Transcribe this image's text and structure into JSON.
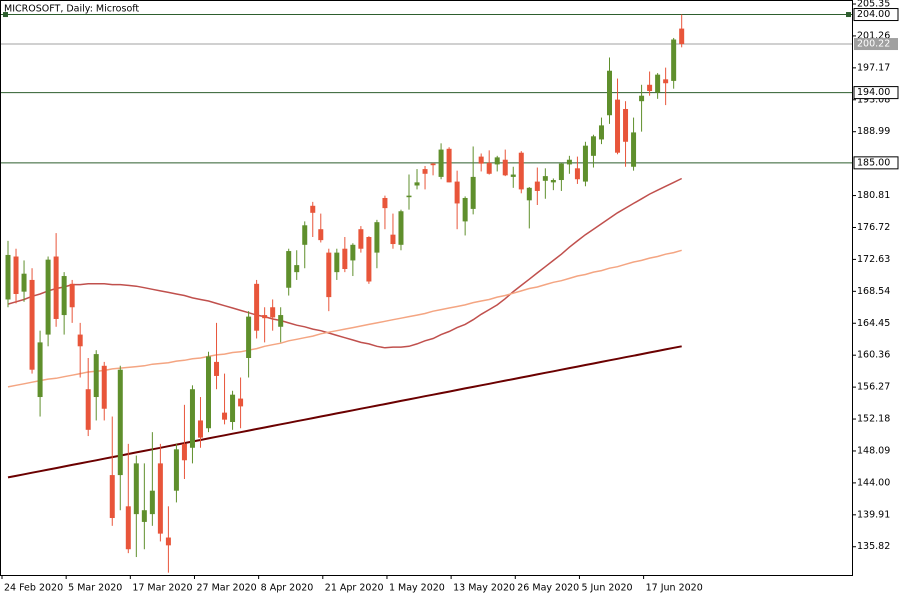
{
  "chart_data": {
    "type": "candlestick",
    "title": "MICROSOFT, Daily:  Microsoft",
    "categories": [
      "24 Feb 2020",
      null,
      null,
      null,
      null,
      null,
      null,
      null,
      "5 Mar 2020",
      null,
      null,
      null,
      null,
      null,
      null,
      null,
      "17 Mar 2020",
      null,
      null,
      null,
      null,
      null,
      null,
      null,
      "27 Mar 2020",
      null,
      null,
      null,
      null,
      null,
      null,
      null,
      "8 Apr 2020",
      null,
      null,
      null,
      null,
      null,
      null,
      null,
      "21 Apr 2020",
      null,
      null,
      null,
      null,
      null,
      null,
      null,
      "1 May 2020",
      null,
      null,
      null,
      null,
      null,
      null,
      null,
      "13 May 2020",
      null,
      null,
      null,
      null,
      null,
      null,
      null,
      "26 May 2020",
      null,
      null,
      null,
      null,
      null,
      null,
      null,
      "5 Jun 2020",
      null,
      null,
      null,
      null,
      null,
      null,
      null,
      "17 Jun 2020",
      null,
      null,
      null,
      null
    ],
    "ohlc": [
      [
        167.5,
        175.0,
        166.5,
        173.2
      ],
      [
        173.0,
        174.0,
        167.0,
        168.2
      ],
      [
        168.5,
        172.5,
        167.2,
        170.8
      ],
      [
        170.0,
        171.5,
        158.0,
        158.5
      ],
      [
        155.0,
        163.5,
        152.5,
        162.0
      ],
      [
        163.0,
        173.0,
        161.5,
        172.6
      ],
      [
        173.0,
        176.0,
        164.0,
        165.0
      ],
      [
        165.5,
        171.0,
        163.0,
        170.5
      ],
      [
        169.5,
        170.0,
        164.5,
        166.5
      ],
      [
        163.0,
        164.5,
        157.5,
        161.5
      ],
      [
        156.0,
        160.0,
        150.0,
        150.8
      ],
      [
        155.0,
        161.0,
        152.0,
        160.5
      ],
      [
        159.0,
        159.5,
        152.0,
        153.5
      ],
      [
        145.0,
        152.5,
        138.5,
        139.5
      ],
      [
        145.0,
        159.0,
        140.5,
        158.5
      ],
      [
        141.0,
        149.0,
        135.0,
        135.5
      ],
      [
        140.0,
        147.5,
        134.5,
        146.5
      ],
      [
        139.0,
        146.5,
        135.5,
        140.5
      ],
      [
        140.0,
        150.5,
        138.5,
        143.0
      ],
      [
        146.5,
        149.0,
        136.5,
        137.5
      ],
      [
        137.0,
        141.0,
        132.5,
        136.0
      ],
      [
        143.0,
        149.0,
        141.5,
        148.3
      ],
      [
        149.0,
        154.0,
        144.5,
        146.9
      ],
      [
        148.5,
        156.5,
        146.5,
        156.0
      ],
      [
        152.0,
        155.0,
        148.5,
        149.8
      ],
      [
        151.0,
        160.8,
        150.5,
        160.2
      ],
      [
        159.5,
        164.5,
        156.0,
        157.7
      ],
      [
        153.0,
        158.0,
        151.5,
        152.1
      ],
      [
        151.8,
        155.8,
        150.8,
        155.3
      ],
      [
        154.8,
        157.5,
        151.0,
        153.8
      ],
      [
        160.0,
        166.0,
        157.5,
        165.3
      ],
      [
        169.5,
        170.0,
        162.5,
        163.5
      ],
      [
        165.5,
        166.5,
        162.0,
        165.1
      ],
      [
        166.5,
        167.5,
        163.5,
        165.2
      ],
      [
        164.0,
        166.5,
        162.0,
        165.5
      ],
      [
        169.0,
        174.0,
        168.0,
        173.7
      ],
      [
        171.0,
        173.8,
        170.0,
        171.9
      ],
      [
        174.5,
        177.5,
        171.5,
        177.0
      ],
      [
        179.5,
        180.0,
        175.5,
        178.6
      ],
      [
        176.5,
        178.5,
        174.8,
        175.1
      ],
      [
        173.5,
        174.0,
        166.0,
        167.8
      ],
      [
        171.0,
        174.0,
        170.0,
        173.5
      ],
      [
        174.0,
        175.5,
        171.0,
        171.4
      ],
      [
        172.5,
        174.7,
        170.5,
        174.5
      ],
      [
        176.5,
        176.9,
        173.5,
        174.0
      ],
      [
        175.5,
        175.6,
        169.5,
        169.8
      ],
      [
        173.5,
        177.7,
        171.5,
        177.4
      ],
      [
        180.5,
        180.8,
        176.5,
        179.2
      ],
      [
        175.8,
        178.5,
        174.0,
        174.6
      ],
      [
        174.5,
        179.0,
        173.8,
        178.8
      ],
      [
        180.6,
        183.5,
        179.0,
        180.8
      ],
      [
        182.1,
        184.2,
        181.6,
        182.5
      ],
      [
        184.2,
        184.6,
        181.6,
        183.6
      ],
      [
        184.9,
        185.0,
        183.4,
        184.7
      ],
      [
        183.2,
        187.5,
        182.9,
        186.7
      ],
      [
        186.8,
        187.0,
        182.5,
        182.5
      ],
      [
        182.6,
        184.0,
        176.5,
        179.8
      ],
      [
        177.5,
        180.7,
        175.7,
        180.5
      ],
      [
        179.1,
        187.1,
        178.4,
        183.2
      ],
      [
        185.8,
        186.2,
        183.9,
        184.9
      ],
      [
        185.0,
        186.6,
        183.5,
        183.6
      ],
      [
        184.8,
        185.9,
        183.9,
        185.7
      ],
      [
        185.4,
        186.7,
        183.3,
        183.4
      ],
      [
        183.2,
        184.5,
        181.8,
        183.5
      ],
      [
        186.3,
        186.5,
        181.1,
        181.6
      ],
      [
        180.2,
        181.9,
        176.6,
        181.8
      ],
      [
        182.6,
        184.4,
        179.6,
        181.4
      ],
      [
        182.7,
        184.3,
        180.4,
        183.3
      ],
      [
        182.5,
        183.0,
        181.5,
        182.8
      ],
      [
        182.8,
        185.0,
        181.4,
        184.9
      ],
      [
        184.8,
        185.9,
        183.6,
        185.4
      ],
      [
        184.3,
        185.8,
        182.3,
        182.9
      ],
      [
        182.6,
        187.7,
        182.0,
        187.2
      ],
      [
        185.9,
        188.6,
        184.4,
        188.4
      ],
      [
        188.0,
        190.8,
        187.4,
        189.8
      ],
      [
        191.1,
        198.5,
        190.0,
        196.8
      ],
      [
        193.1,
        195.8,
        186.1,
        186.3
      ],
      [
        191.9,
        192.9,
        184.5,
        187.7
      ],
      [
        184.5,
        190.8,
        184.0,
        188.9
      ],
      [
        192.9,
        195.0,
        189.0,
        193.6
      ],
      [
        195.0,
        196.7,
        193.6,
        194.2
      ],
      [
        194.0,
        196.5,
        193.2,
        196.3
      ],
      [
        195.7,
        197.2,
        192.4,
        195.2
      ],
      [
        195.5,
        201.0,
        194.5,
        200.8
      ],
      [
        202.2,
        204.0,
        199.8,
        200.22
      ]
    ],
    "up_color": "#5f8f2c",
    "down_color": "#e8553a",
    "series": [
      {
        "color": "#c0504d",
        "values": [
          166.9,
          167.2,
          167.5,
          167.9,
          168.2,
          168.6,
          168.9,
          169.1,
          169.4,
          169.4,
          169.5,
          169.5,
          169.5,
          169.4,
          169.4,
          169.3,
          169.2,
          169.0,
          168.8,
          168.6,
          168.4,
          168.2,
          168.0,
          167.7,
          167.5,
          167.3,
          167.0,
          166.7,
          166.4,
          166.1,
          165.8,
          165.5,
          165.3,
          165.0,
          164.8,
          164.5,
          164.2,
          164.0,
          163.7,
          163.5,
          163.2,
          162.9,
          162.6,
          162.3,
          162.0,
          161.8,
          161.5,
          161.3,
          161.4,
          161.4,
          161.5,
          161.8,
          162.2,
          162.5,
          163.0,
          163.4,
          163.9,
          164.3,
          164.9,
          165.6,
          166.2,
          166.8,
          167.6,
          168.5,
          169.3,
          170.1,
          170.9,
          171.7,
          172.5,
          173.3,
          174.2,
          175.0,
          175.8,
          176.5,
          177.2,
          177.9,
          178.6,
          179.2,
          179.8,
          180.4,
          181.0,
          181.5,
          182.0,
          182.5,
          183.0
        ]
      },
      {
        "color": "#f4a582",
        "values": [
          156.3,
          156.5,
          156.7,
          156.9,
          157.1,
          157.3,
          157.4,
          157.6,
          157.8,
          158.0,
          158.2,
          158.3,
          158.4,
          158.6,
          158.7,
          158.8,
          158.9,
          159.0,
          159.2,
          159.3,
          159.4,
          159.6,
          159.7,
          159.9,
          160.0,
          160.2,
          160.4,
          160.5,
          160.7,
          160.8,
          161.0,
          161.2,
          161.5,
          161.7,
          161.9,
          162.2,
          162.4,
          162.6,
          162.8,
          163.1,
          163.3,
          163.5,
          163.7,
          163.9,
          164.1,
          164.3,
          164.5,
          164.7,
          164.9,
          165.1,
          165.3,
          165.5,
          165.7,
          166.0,
          166.2,
          166.4,
          166.6,
          166.8,
          167.1,
          167.3,
          167.5,
          167.8,
          168.0,
          168.3,
          168.6,
          168.9,
          169.1,
          169.4,
          169.7,
          169.9,
          170.2,
          170.5,
          170.7,
          171.0,
          171.2,
          171.5,
          171.7,
          172.0,
          172.3,
          172.5,
          172.8,
          173.0,
          173.3,
          173.5,
          173.8
        ]
      },
      {
        "color": "#6b0000",
        "values": [
          144.7,
          144.9,
          145.1,
          145.3,
          145.5,
          145.7,
          145.9,
          146.1,
          146.3,
          146.5,
          146.7,
          146.9,
          147.1,
          147.3,
          147.5,
          147.7,
          147.9,
          148.1,
          148.3,
          148.5,
          148.7,
          148.9,
          149.1,
          149.3,
          149.5,
          149.7,
          149.9,
          150.1,
          150.3,
          150.5,
          150.7,
          150.9,
          151.1,
          151.3,
          151.5,
          151.7,
          151.9,
          152.1,
          152.3,
          152.5,
          152.7,
          152.9,
          153.1,
          153.3,
          153.5,
          153.7,
          153.9,
          154.1,
          154.3,
          154.5,
          154.7,
          154.9,
          155.1,
          155.3,
          155.5,
          155.7,
          155.9,
          156.1,
          156.3,
          156.5,
          156.7,
          156.9,
          157.1,
          157.3,
          157.5,
          157.7,
          157.9,
          158.1,
          158.3,
          158.5,
          158.7,
          158.9,
          159.1,
          159.3,
          159.5,
          159.7,
          159.9,
          160.1,
          160.3,
          160.5,
          160.7,
          160.9,
          161.1,
          161.3,
          161.5
        ]
      }
    ],
    "levels": [
      {
        "value": 204,
        "label": "204.00"
      },
      {
        "value": 194,
        "label": "194.00"
      },
      {
        "value": 185,
        "label": "185.00"
      }
    ],
    "level_color": "#2e5e2e",
    "price_line": 200.22,
    "price_line_color": "#a0a0a0",
    "ylim": [
      132.2,
      205.35
    ],
    "yticks": [
      205.35,
      201.26,
      197.17,
      193.08,
      188.99,
      180.81,
      176.72,
      172.63,
      168.54,
      164.45,
      160.36,
      156.27,
      152.18,
      148.09,
      {
        "value": 144,
        "label": "144.00"
      },
      139.91,
      135.82
    ]
  }
}
